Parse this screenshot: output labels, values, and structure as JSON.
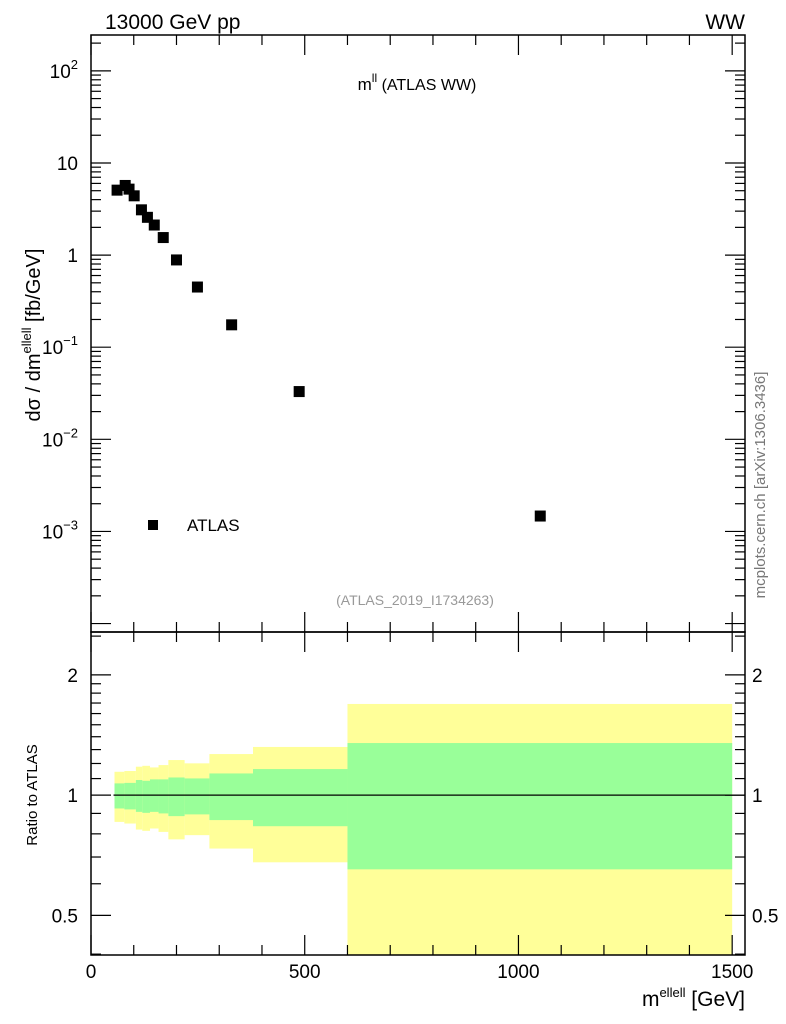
{
  "header": {
    "left": "13000 GeV pp",
    "right": "WW"
  },
  "side_label": "mcplots.cern.ch [arXiv:1306.3436]",
  "chart_data": [
    {
      "type": "scatter",
      "title_main": "m",
      "title_sup": "ll",
      "title_rest": " (ATLAS WW)",
      "analysis_id": "(ATLAS_2019_I1734263)",
      "ylabel_main": "dσ / dm",
      "ylabel_sup": "ellell",
      "ylabel_unit": " [fb/GeV]",
      "yscale": "log",
      "xlim": [
        0,
        1530
      ],
      "ylim": [
        8.1e-05,
        245
      ],
      "yticks": [
        {
          "value": 100,
          "base": "10",
          "exp": "2"
        },
        {
          "value": 10,
          "base": "10",
          "exp": ""
        },
        {
          "value": 1,
          "base": "1",
          "exp": ""
        },
        {
          "value": 0.1,
          "base": "10",
          "exp": "−1"
        },
        {
          "value": 0.01,
          "base": "10",
          "exp": "−2"
        },
        {
          "value": 0.001,
          "base": "10",
          "exp": "−3"
        }
      ],
      "legend": {
        "label": "ATLAS",
        "placement": "bottom-left"
      },
      "series": [
        {
          "name": "ATLAS",
          "x": [
            61,
            80,
            89,
            101,
            118,
            132,
            148,
            169,
            200,
            249,
            329,
            487,
            1051
          ],
          "y": [
            5.07,
            5.7,
            5.2,
            4.4,
            3.1,
            2.57,
            2.12,
            1.55,
            0.886,
            0.45,
            0.175,
            0.033,
            0.00147
          ]
        }
      ]
    },
    {
      "type": "area",
      "ylabel": "Ratio to ATLAS",
      "xlabel_main": "m",
      "xlabel_sup": "ellell",
      "xlabel_unit": " [GeV]",
      "yscale": "log",
      "xlim": [
        0,
        1530
      ],
      "ylim": [
        0.398,
        2.56
      ],
      "yticks": [
        "0.5",
        "1",
        "2"
      ],
      "ytick_values": [
        0.5,
        1,
        2
      ],
      "xticks": [
        "0",
        "500",
        "1000",
        "1500"
      ],
      "xtick_values": [
        0,
        500,
        1000,
        1500
      ],
      "bin_edges": [
        55,
        78,
        105,
        120,
        138,
        158,
        181,
        219,
        277,
        379,
        600,
        1500
      ],
      "bands": [
        {
          "name": "total uncertainty",
          "color": "#ffff99",
          "upper": [
            1.144,
            1.149,
            1.178,
            1.184,
            1.173,
            1.189,
            1.224,
            1.201,
            1.267,
            1.32,
            1.691
          ],
          "lower": [
            0.857,
            0.849,
            0.82,
            0.814,
            0.825,
            0.809,
            0.775,
            0.794,
            0.735,
            0.679,
            0.38
          ]
        },
        {
          "name": "stat uncertainty",
          "color": "#99ff99",
          "upper": [
            1.07,
            1.073,
            1.091,
            1.086,
            1.095,
            1.095,
            1.107,
            1.101,
            1.133,
            1.162,
            1.35
          ],
          "lower": [
            0.926,
            0.921,
            0.908,
            0.903,
            0.908,
            0.9,
            0.886,
            0.895,
            0.866,
            0.836,
            0.652
          ]
        }
      ],
      "reference_line": 1
    }
  ]
}
